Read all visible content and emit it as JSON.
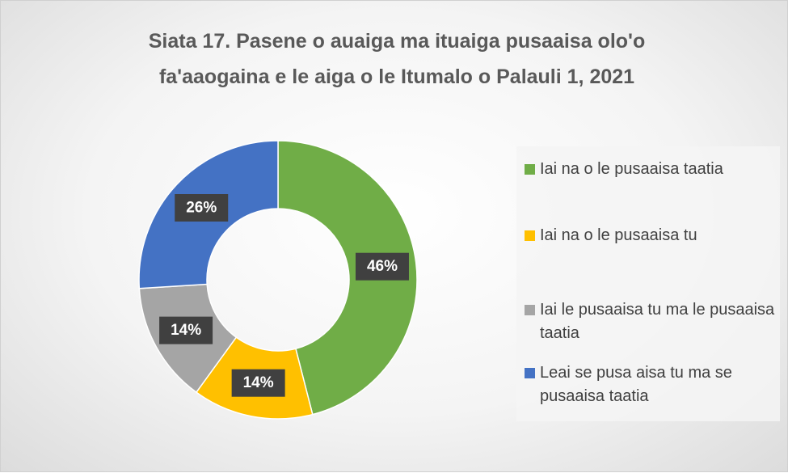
{
  "chart_data": {
    "type": "donut",
    "title": "Siata 17. Pasene o auaiga ma ituaiga pusaaisa olo'o fa'aaogaina e le aiga o le Itumalo o Palauli 1, 2021",
    "categories": [
      "Iai na o le pusaaisa taatia",
      "Iai na o le pusaaisa tu",
      "Iai le pusaaisa tu ma le pusaaisa taatia",
      "Leai se pusa aisa tu ma se pusaaisa taatia"
    ],
    "values": [
      46,
      14,
      14,
      26
    ],
    "value_labels": [
      "46%",
      "14%",
      "14%",
      "26%"
    ],
    "colors": [
      "#70ad47",
      "#ffc000",
      "#a5a5a5",
      "#4472c4"
    ]
  }
}
